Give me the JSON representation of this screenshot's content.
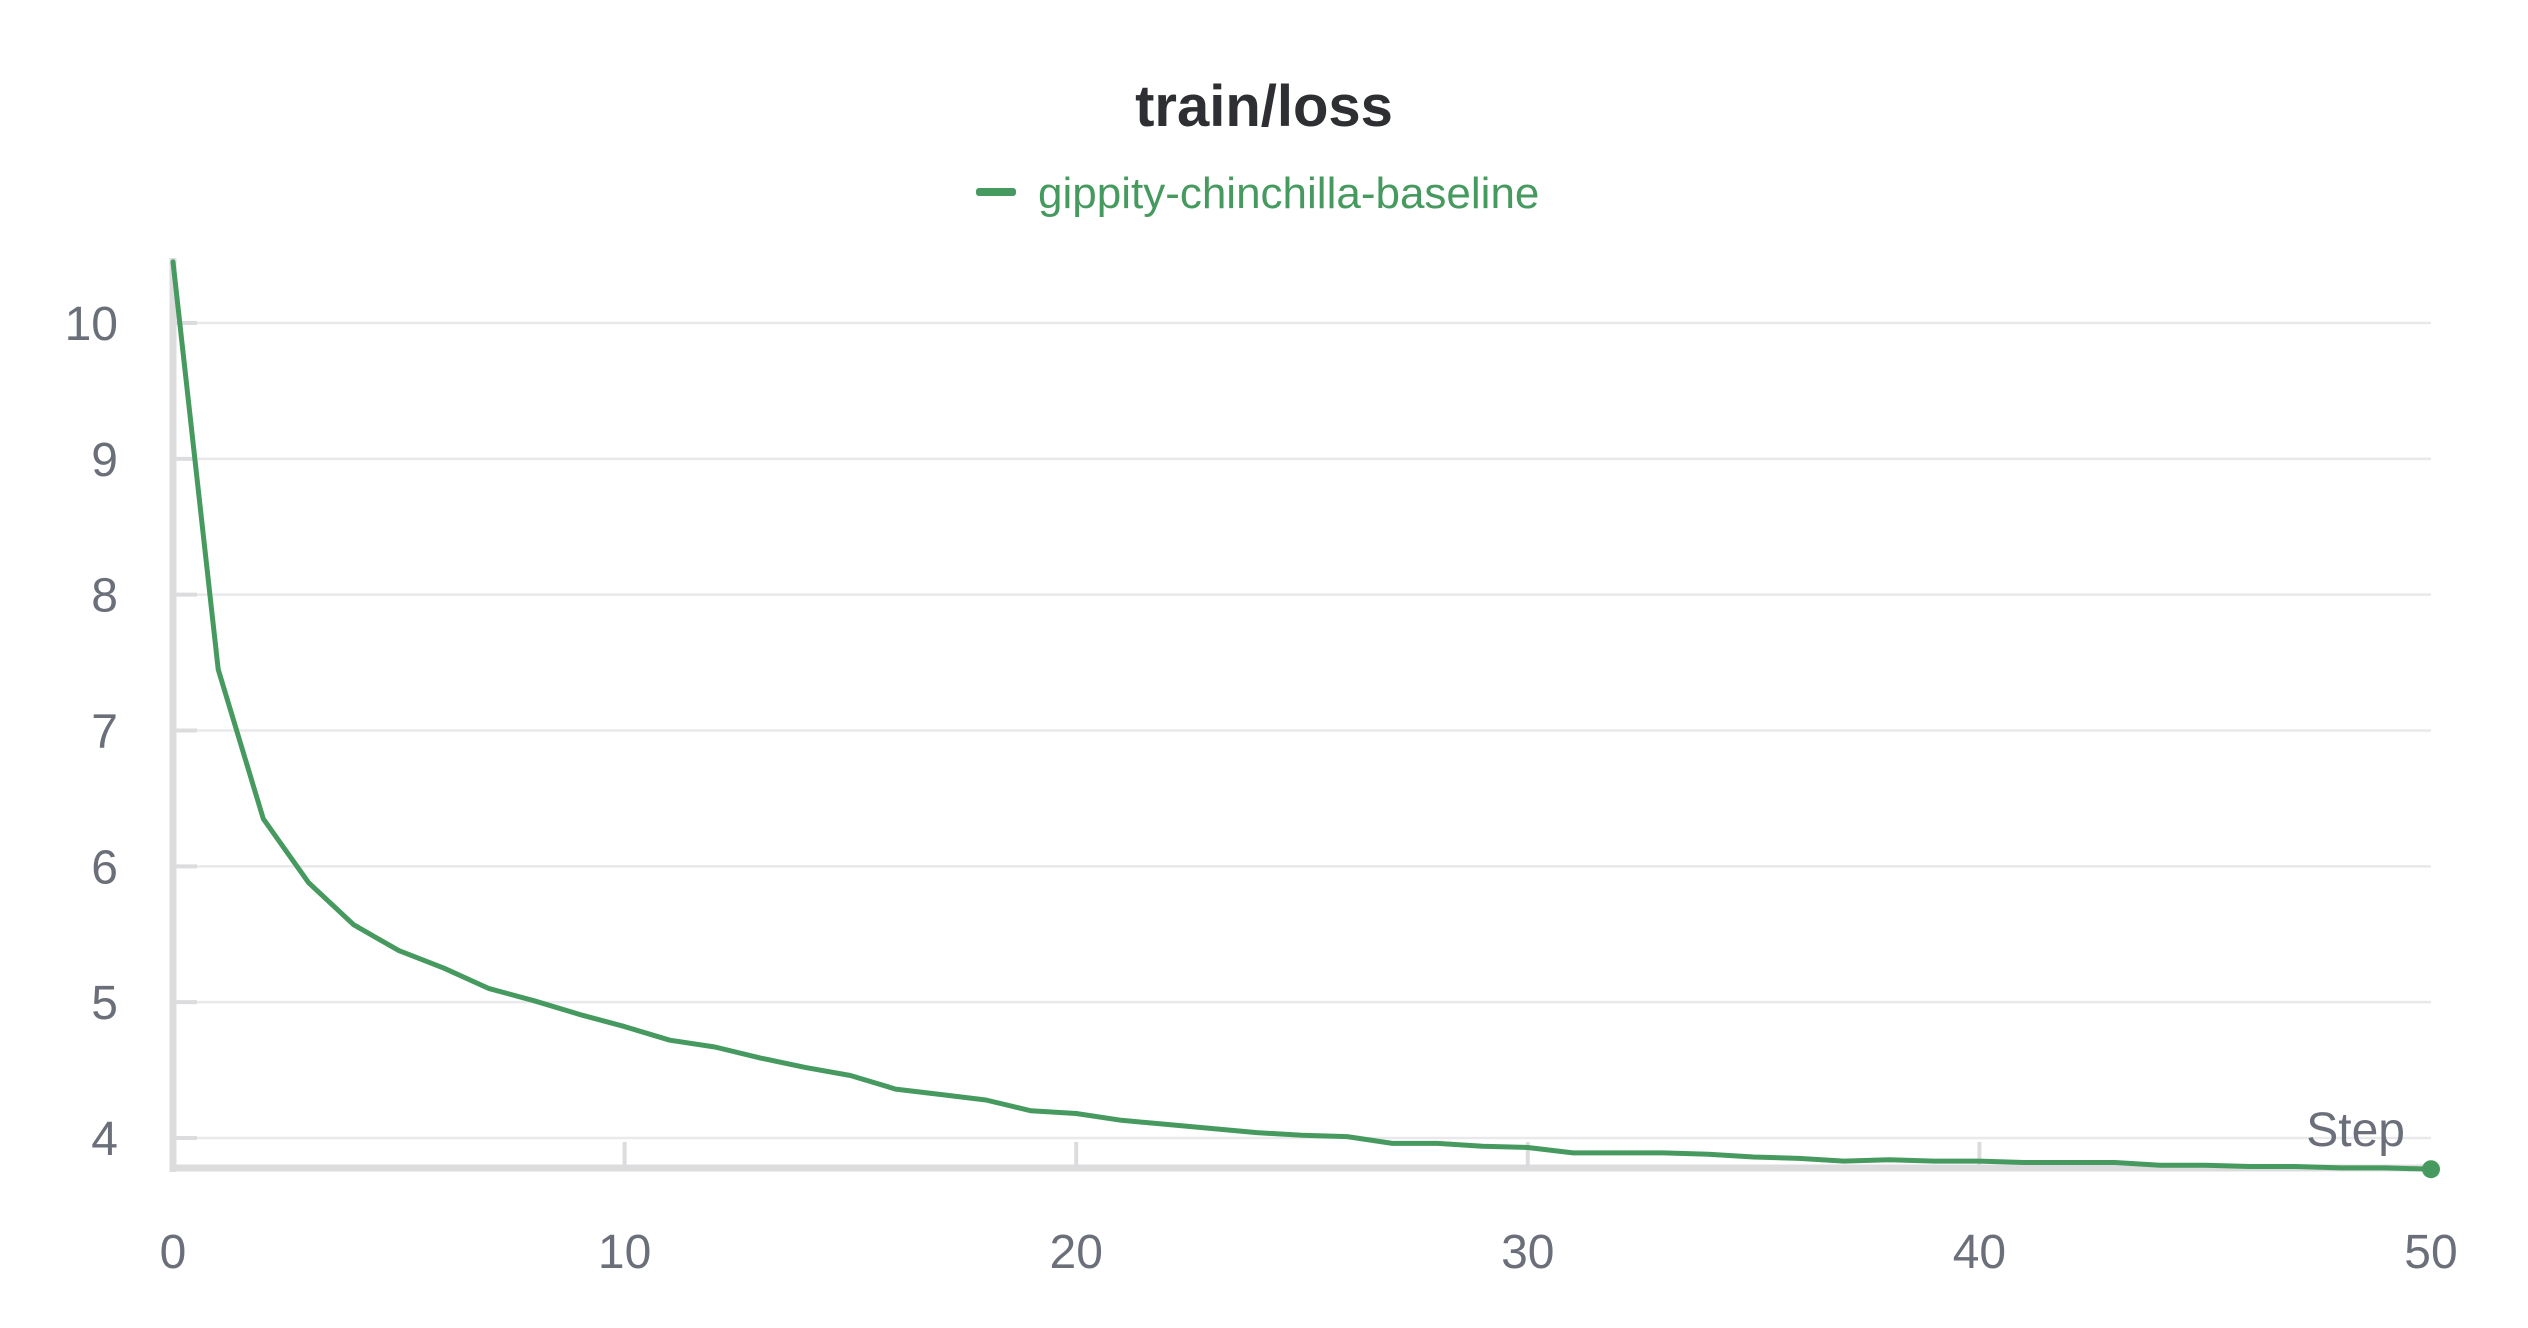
{
  "chart_data": {
    "type": "line",
    "title": "train/loss",
    "xlabel": "Step",
    "ylabel": "",
    "xlim": [
      0,
      50
    ],
    "ylim": [
      3.75,
      10.45
    ],
    "xticks": [
      0,
      10,
      20,
      30,
      40,
      50
    ],
    "yticks": [
      4,
      5,
      6,
      7,
      8,
      9,
      10
    ],
    "grid": "horizontal",
    "legend_position": "top-center",
    "series": [
      {
        "name": "gippity-chinchilla-baseline",
        "color": "#479a5f",
        "x": [
          0,
          1,
          2,
          3,
          4,
          5,
          6,
          7,
          8,
          9,
          10,
          11,
          12,
          13,
          14,
          15,
          16,
          17,
          18,
          19,
          20,
          21,
          22,
          23,
          24,
          25,
          26,
          27,
          28,
          29,
          30,
          31,
          32,
          33,
          34,
          35,
          36,
          37,
          38,
          39,
          40,
          41,
          42,
          43,
          44,
          45,
          46,
          47,
          48,
          49,
          50
        ],
        "y": [
          10.45,
          7.45,
          6.35,
          5.88,
          5.57,
          5.38,
          5.25,
          5.1,
          5.01,
          4.91,
          4.82,
          4.72,
          4.67,
          4.59,
          4.52,
          4.46,
          4.36,
          4.32,
          4.28,
          4.2,
          4.18,
          4.13,
          4.1,
          4.07,
          4.04,
          4.02,
          4.01,
          3.96,
          3.96,
          3.94,
          3.93,
          3.89,
          3.89,
          3.89,
          3.88,
          3.86,
          3.85,
          3.83,
          3.84,
          3.83,
          3.83,
          3.82,
          3.82,
          3.82,
          3.8,
          3.8,
          3.79,
          3.79,
          3.78,
          3.78,
          3.77
        ]
      }
    ]
  }
}
